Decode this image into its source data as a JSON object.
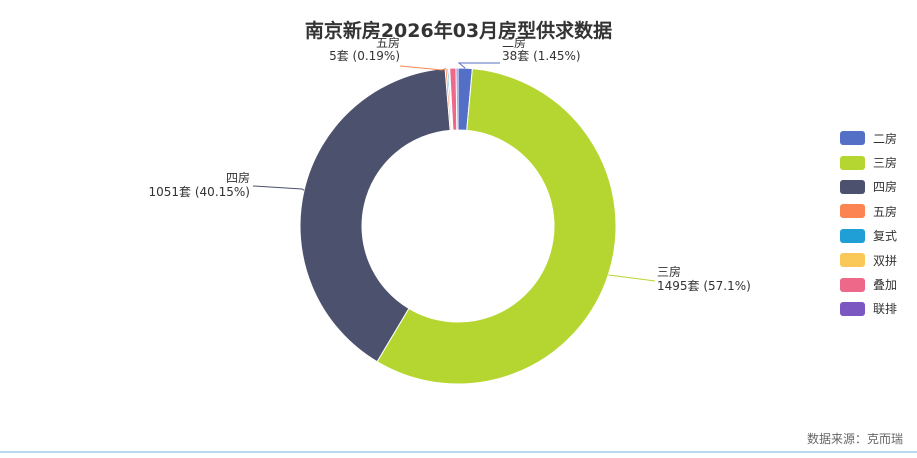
{
  "chart_data": {
    "type": "pie",
    "variant": "donut",
    "title": "南京新房2026年03月房型供求数据",
    "unit": "套",
    "categories": [
      "二房",
      "三房",
      "四房",
      "五房",
      "复式",
      "双拼",
      "叠加",
      "联排"
    ],
    "values": [
      38,
      1495,
      1051,
      5,
      4,
      3,
      17,
      5
    ],
    "colors": [
      "#5470c6",
      "#b5d630",
      "#4c516d",
      "#fc8452",
      "#1f9fd6",
      "#fac858",
      "#ee6889",
      "#7b57c2"
    ],
    "labels": [
      {
        "name": "二房",
        "text": "38套 (1.45%)"
      },
      {
        "name": "三房",
        "text": "1495套 (57.1%)"
      },
      {
        "name": "四房",
        "text": "1051套 (40.15%)"
      },
      {
        "name": "五房",
        "text": "5套 (0.19%)"
      }
    ],
    "legend_position": "right"
  },
  "source": "数据来源：克而瑞"
}
